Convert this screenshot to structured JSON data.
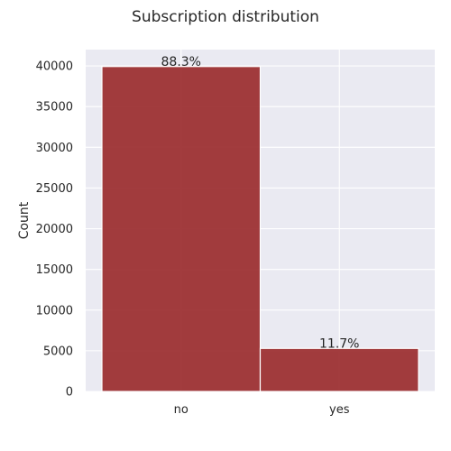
{
  "chart_data": {
    "type": "bar",
    "title": "Subscription distribution",
    "xlabel": "",
    "ylabel": "Count",
    "categories": [
      "no",
      "yes"
    ],
    "values": [
      39922,
      5289
    ],
    "data_labels": [
      "88.3%",
      "11.7%"
    ],
    "ylim": [
      0,
      42000
    ],
    "yticks": [
      0,
      5000,
      10000,
      15000,
      20000,
      25000,
      30000,
      35000,
      40000
    ],
    "grid": true,
    "legend": "none",
    "colors": {
      "bar": "#9b2d2f",
      "plot_background": "#eaeaf2",
      "grid": "#ffffff"
    }
  }
}
